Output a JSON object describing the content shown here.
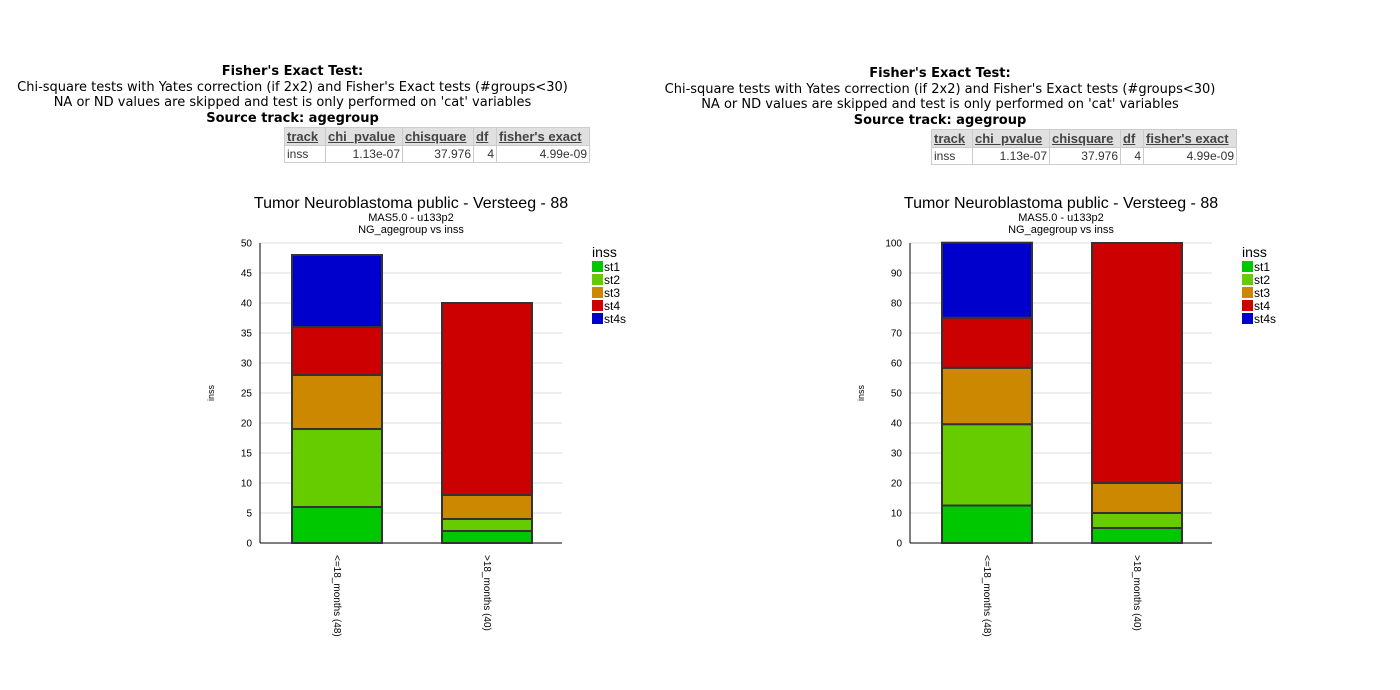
{
  "panels": [
    {
      "stats": {
        "title": "Fisher's Exact Test:",
        "line1": "Chi-square tests with Yates correction (if 2x2) and Fisher's Exact tests (#groups<30)",
        "line2": "NA or ND values are skipped and test is only performed on 'cat' variables",
        "source": "Source track: agegroup"
      },
      "table": {
        "headers": [
          "track",
          "chi_pvalue",
          "chisquare",
          "df",
          "fisher's exact"
        ],
        "rows": [
          [
            "inss",
            "1.13e-07",
            "37.976",
            "4",
            "4.99e-09"
          ]
        ]
      }
    },
    {
      "stats": {
        "title": "Fisher's Exact Test:",
        "line1": "Chi-square tests with Yates correction (if 2x2) and Fisher's Exact tests (#groups<30)",
        "line2": "NA or ND values are skipped and test is only performed on 'cat' variables",
        "source": "Source track: agegroup"
      },
      "table": {
        "headers": [
          "track",
          "chi_pvalue",
          "chisquare",
          "df",
          "fisher's exact"
        ],
        "rows": [
          [
            "inss",
            "1.13e-07",
            "37.976",
            "4",
            "4.99e-09"
          ]
        ]
      }
    }
  ],
  "chart_data": [
    {
      "type": "bar",
      "stacked": true,
      "title": "Tumor Neuroblastoma public - Versteeg - 88",
      "subtitle1": "MAS5.0 - u133p2",
      "subtitle2": "NG_agegroup vs inss",
      "xlabel": "",
      "ylabel": "inss",
      "ylim": [
        0,
        50
      ],
      "yticks": [
        0,
        5,
        10,
        15,
        20,
        25,
        30,
        35,
        40,
        45,
        50
      ],
      "grid": true,
      "legend_title": "inss",
      "legend_position": "right",
      "categories": [
        "<=18_months (48)",
        ">18_months (40)"
      ],
      "series": [
        {
          "name": "st1",
          "color": "#00c800",
          "values": [
            6,
            2
          ]
        },
        {
          "name": "st2",
          "color": "#66cc00",
          "values": [
            13,
            2
          ]
        },
        {
          "name": "st3",
          "color": "#cc8800",
          "values": [
            9,
            4
          ]
        },
        {
          "name": "st4",
          "color": "#cc0000",
          "values": [
            8,
            32
          ]
        },
        {
          "name": "st4s",
          "color": "#0000cc",
          "values": [
            12,
            0
          ]
        }
      ]
    },
    {
      "type": "bar",
      "stacked": true,
      "title": "Tumor Neuroblastoma public - Versteeg - 88",
      "subtitle1": "MAS5.0 - u133p2",
      "subtitle2": "NG_agegroup vs inss",
      "xlabel": "",
      "ylabel": "inss",
      "ylim": [
        0,
        100
      ],
      "yticks": [
        0,
        10,
        20,
        30,
        40,
        50,
        60,
        70,
        80,
        90,
        100
      ],
      "grid": true,
      "legend_title": "inss",
      "legend_position": "right",
      "categories": [
        "<=18_months (48)",
        ">18_months (40)"
      ],
      "series": [
        {
          "name": "st1",
          "color": "#00c800",
          "values": [
            12.5,
            5
          ]
        },
        {
          "name": "st2",
          "color": "#66cc00",
          "values": [
            27.1,
            5
          ]
        },
        {
          "name": "st3",
          "color": "#cc8800",
          "values": [
            18.8,
            10
          ]
        },
        {
          "name": "st4",
          "color": "#cc0000",
          "values": [
            16.7,
            80
          ]
        },
        {
          "name": "st4s",
          "color": "#0000cc",
          "values": [
            25,
            0
          ]
        }
      ]
    }
  ]
}
